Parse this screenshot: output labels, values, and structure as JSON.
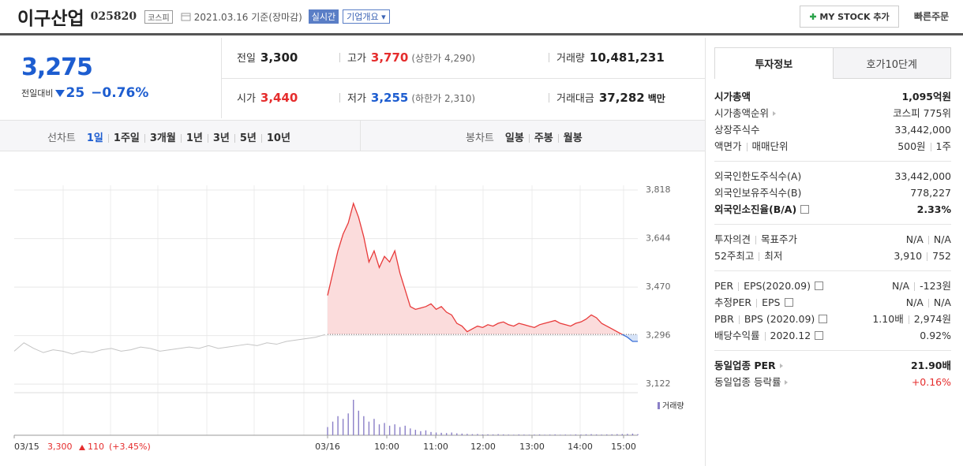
{
  "header": {
    "name": "이구산업",
    "code": "025820",
    "market": "코스피",
    "date": "2021.03.16 기준(장마감)",
    "realtime": "실시간",
    "overview": "기업개요",
    "my_stock": "MY STOCK 추가",
    "quick_order": "빠른주문"
  },
  "quote": {
    "price": "3,275",
    "change_label": "전일대비",
    "change": "25",
    "change_pct": "−0.76%",
    "fields": [
      {
        "label": "전일",
        "value": "3,300"
      },
      {
        "label": "고가",
        "value": "3,770",
        "note": "(상한가 4,290)",
        "color": "#e52d2d"
      },
      {
        "label": "거래량",
        "value": "10,481,231"
      },
      {
        "label": "시가",
        "value": "3,440",
        "color": "#e52d2d"
      },
      {
        "label": "저가",
        "value": "3,255",
        "note": "(하한가 2,310)",
        "color": "#1d5dd0"
      },
      {
        "label": "거래대금",
        "value": "37,282",
        "note": "백만"
      }
    ]
  },
  "tabs": {
    "line_label": "선차트",
    "line_periods": [
      "1일",
      "1주일",
      "3개월",
      "1년",
      "3년",
      "5년",
      "10년"
    ],
    "active": 0,
    "candle_label": "봉차트",
    "candle_periods": [
      "일봉",
      "주봉",
      "월봉"
    ]
  },
  "chart": {
    "ylim": [
      3094,
      3920
    ],
    "yticks": [
      {
        "value": 3818,
        "label": "3,818"
      },
      {
        "value": 3644,
        "label": "3,644"
      },
      {
        "value": 3470,
        "label": "3,470"
      },
      {
        "value": 3296,
        "label": "3,296"
      },
      {
        "value": 3122,
        "label": "3,122"
      }
    ],
    "base": 3300,
    "x_labels": [
      "03/15",
      "03/16",
      "10:00",
      "11:00",
      "12:00",
      "13:00",
      "14:00",
      "15:00"
    ],
    "prev_day": [
      3240,
      3270,
      3250,
      3235,
      3245,
      3240,
      3230,
      3240,
      3235,
      3245,
      3250,
      3240,
      3245,
      3255,
      3250,
      3240,
      3245,
      3250,
      3255,
      3250,
      3260,
      3250,
      3255,
      3260,
      3265,
      3260,
      3270,
      3265,
      3275,
      3280,
      3285,
      3290,
      3300
    ],
    "day": [
      3440,
      3520,
      3600,
      3660,
      3700,
      3770,
      3720,
      3650,
      3560,
      3600,
      3540,
      3580,
      3560,
      3600,
      3520,
      3460,
      3400,
      3390,
      3395,
      3400,
      3410,
      3390,
      3400,
      3380,
      3370,
      3340,
      3330,
      3310,
      3320,
      3330,
      3325,
      3335,
      3330,
      3340,
      3345,
      3335,
      3330,
      3340,
      3335,
      3330,
      3325,
      3335,
      3340,
      3345,
      3350,
      3340,
      3335,
      3330,
      3340,
      3345,
      3355,
      3370,
      3360,
      3340,
      3330,
      3320,
      3310,
      3300,
      3290,
      3275,
      3275
    ],
    "volume": [
      300000,
      500000,
      700000,
      600000,
      800000,
      1300000,
      900000,
      700000,
      500000,
      600000,
      400000,
      450000,
      350000,
      400000,
      300000,
      350000,
      250000,
      200000,
      150000,
      180000,
      120000,
      100000,
      90000,
      80000,
      100000,
      70000,
      60000,
      50000,
      40000,
      45000,
      30000,
      35000,
      30000,
      40000,
      30000,
      25000,
      20000,
      30000,
      25000,
      20000,
      25000,
      30000,
      20000,
      25000,
      30000,
      20000,
      25000,
      20000,
      30000,
      25000,
      35000,
      40000,
      30000,
      25000,
      30000,
      35000,
      40000,
      45000,
      50000,
      60000,
      40000
    ],
    "volume_label": "거래량",
    "footer": {
      "close": "3,300",
      "change": "110",
      "pct": "(+3.45%)"
    }
  },
  "invest": {
    "tabs": [
      "투자정보",
      "호가10단계"
    ],
    "sections": [
      [
        {
          "label": [
            "시가총액"
          ],
          "value": [
            "1,095억원"
          ],
          "bold": true
        },
        {
          "label": [
            "시가총액순위"
          ],
          "value": [
            "코스피 775위"
          ],
          "arrow": true
        },
        {
          "label": [
            "상장주식수"
          ],
          "value": [
            "33,442,000"
          ]
        },
        {
          "label": [
            "액면가",
            "매매단위"
          ],
          "value": [
            "500원",
            "1주"
          ]
        }
      ],
      [
        {
          "label": [
            "외국인한도주식수(A)"
          ],
          "value": [
            "33,442,000"
          ]
        },
        {
          "label": [
            "외국인보유주식수(B)"
          ],
          "value": [
            "778,227"
          ]
        },
        {
          "label": [
            "외국인소진율(B/A)"
          ],
          "value": [
            "2.33%"
          ],
          "bold": true,
          "help": true
        }
      ],
      [
        {
          "label": [
            "투자의견",
            "목표주가"
          ],
          "value": [
            "N/A",
            "N/A"
          ]
        },
        {
          "label": [
            "52주최고",
            "최저"
          ],
          "value": [
            "3,910",
            "752"
          ]
        }
      ],
      [
        {
          "label": [
            "PER",
            "EPS(2020.09)"
          ],
          "value": [
            "N/A",
            "-123원"
          ],
          "help": true
        },
        {
          "label": [
            "추정PER",
            "EPS"
          ],
          "value": [
            "N/A",
            "N/A"
          ],
          "help": true
        },
        {
          "label": [
            "PBR",
            "BPS (2020.09)"
          ],
          "value": [
            "1.10배",
            "2,974원"
          ],
          "help": true
        },
        {
          "label": [
            "배당수익률",
            "2020.12"
          ],
          "value": [
            "0.92%"
          ],
          "help": true
        }
      ],
      [
        {
          "label": [
            "동일업종 PER"
          ],
          "value": [
            "21.90배"
          ],
          "bold": true,
          "arrow": true
        },
        {
          "label": [
            "동일업종 등락률"
          ],
          "value": [
            "+0.16%"
          ],
          "color": "#e52d2d",
          "arrow": true
        }
      ]
    ]
  }
}
